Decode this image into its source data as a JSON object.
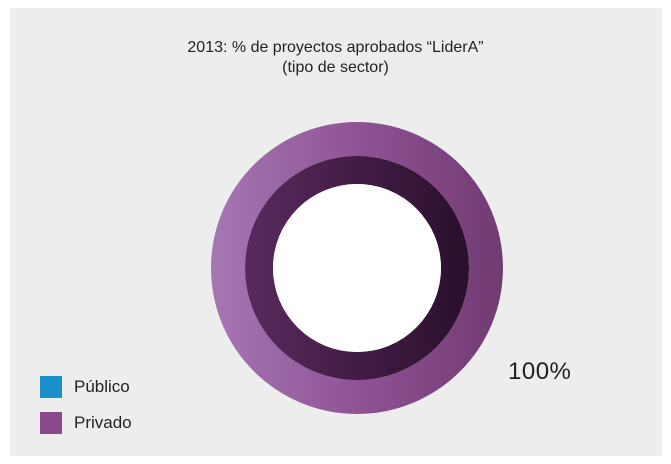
{
  "chart_data": {
    "type": "pie",
    "title_line1": "2013: % de proyectos aprobados “LiderA”",
    "title_line2": "(tipo de sector)",
    "slices": [
      {
        "name": "Público",
        "value": 0,
        "color": "#1a8fc9"
      },
      {
        "name": "Privado",
        "value": 100,
        "color": "#8a4b8c"
      }
    ],
    "data_label": "100%",
    "legend_position": "bottom-left"
  }
}
